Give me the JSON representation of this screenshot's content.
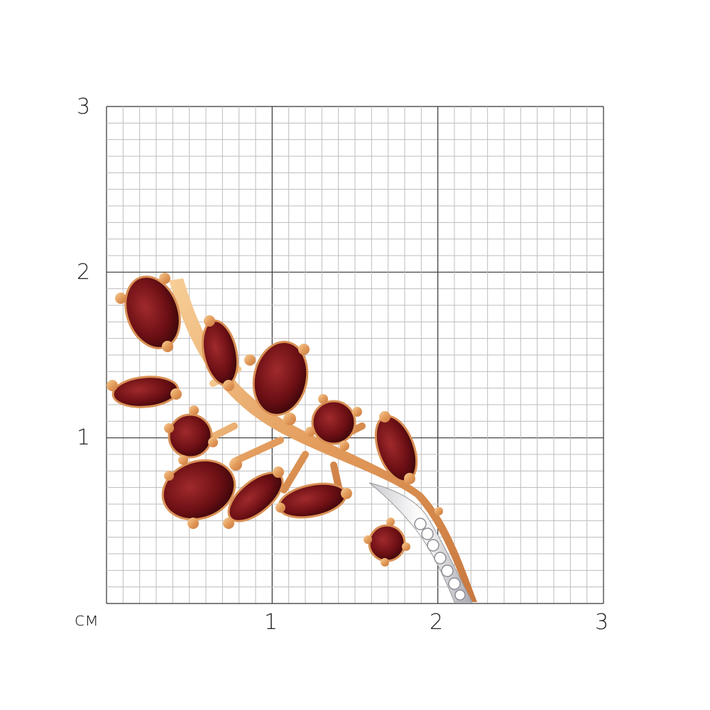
{
  "scale": {
    "unit": "см",
    "y_labels": [
      "3",
      "2",
      "1"
    ],
    "x_labels": [
      "1",
      "2",
      "3"
    ],
    "range_cm": [
      0,
      3
    ],
    "minor_divisions_per_cm": 10
  },
  "product": {
    "type": "brooch",
    "metal_color": "#e8a86a",
    "stone_color": "#6b0f14",
    "accent_stone_color": "#f2f2f2"
  }
}
